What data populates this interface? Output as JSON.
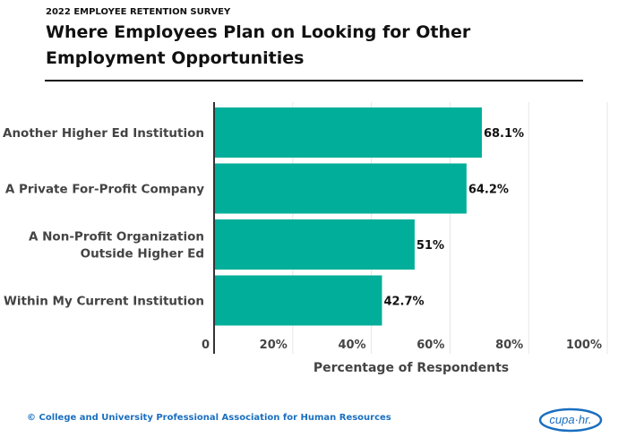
{
  "header": {
    "kicker": "2022 EMPLOYEE RETENTION SURVEY",
    "title": "Where Employees Plan on Looking for Other Employment Opportunities"
  },
  "chart_data": {
    "type": "bar",
    "orientation": "horizontal",
    "categories": [
      [
        "Another Higher Ed Institution"
      ],
      [
        "A Private For-Profit Company"
      ],
      [
        "A Non-Profit Organization",
        "Outside Higher Ed"
      ],
      [
        "Within My Current Institution"
      ]
    ],
    "values": [
      68.1,
      64.2,
      51,
      42.7
    ],
    "value_labels": [
      "68.1%",
      "64.2%",
      "51%",
      "42.7%"
    ],
    "xlabel": "Percentage of Respondents",
    "xlim": [
      0,
      100
    ],
    "xticks": [
      0,
      20,
      40,
      60,
      80,
      100
    ],
    "xtick_labels": [
      "0",
      "20%",
      "40%",
      "60%",
      "80%",
      "100%"
    ],
    "grid": true,
    "bar_color": "#00ae99"
  },
  "footer": {
    "copyright": "© College and University Professional Association for Human Resources",
    "logo_text": "cupa·hr."
  }
}
